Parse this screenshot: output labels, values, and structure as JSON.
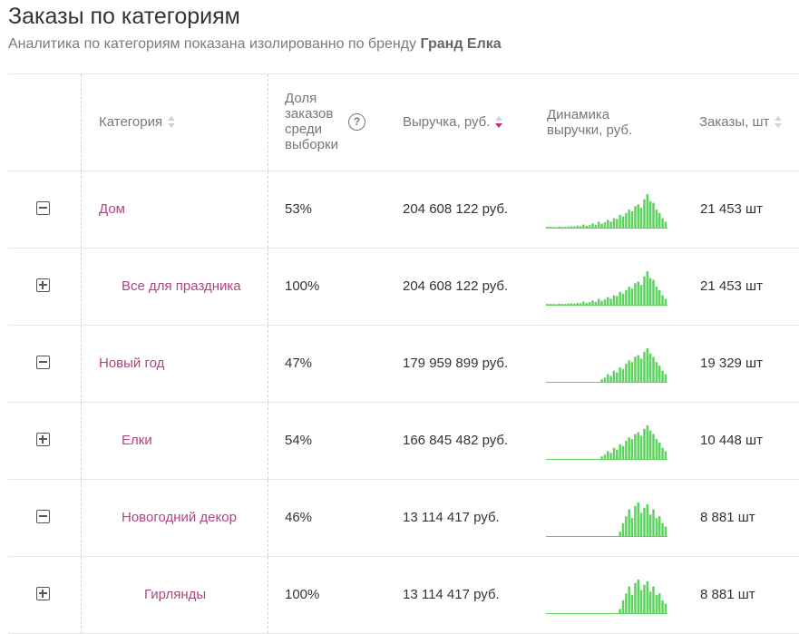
{
  "page": {
    "title": "Заказы по категориям",
    "subtitle_prefix": "Аналитика по категориям показана изолированно по бренду",
    "brand": "Гранд Елка"
  },
  "table": {
    "headers": {
      "category": "Категория",
      "share_l1": "Доля",
      "share_l2": "заказов",
      "share_l3": "среди",
      "share_l4": "выборки",
      "revenue": "Выручка,  руб.",
      "dynamics_l1": "Динамика",
      "dynamics_l2": "выручки,  руб.",
      "orders": "Заказы, шт"
    },
    "help_icon_glyph": "?",
    "sort_active_color": "#c2307a",
    "category_color": "#b0457f",
    "spark_color": "#5fd35f",
    "rows": [
      {
        "expanded": true,
        "level": 0,
        "category": "Дом",
        "share": "53%",
        "revenue": "204 608 122 руб.",
        "orders": "21 453 шт"
      },
      {
        "expanded": false,
        "level": 1,
        "category": "Все для праздника",
        "share": "100%",
        "revenue": "204 608 122 руб.",
        "orders": "21 453 шт"
      },
      {
        "expanded": true,
        "level": 0,
        "category": "Новый год",
        "share": "47%",
        "revenue": "179 959 899 руб.",
        "orders": "19 329 шт"
      },
      {
        "expanded": false,
        "level": 1,
        "category": "Елки",
        "share": "54%",
        "revenue": "166 845 482 руб.",
        "orders": "10 448 шт"
      },
      {
        "expanded": true,
        "level": 1,
        "category": "Новогодний декор",
        "share": "46%",
        "revenue": "13 114 417 руб.",
        "orders": "8 881 шт"
      },
      {
        "expanded": false,
        "level": 2,
        "category": "Гирлянды",
        "share": "100%",
        "revenue": "13 114 417 руб.",
        "orders": "8 881 шт"
      }
    ]
  }
}
